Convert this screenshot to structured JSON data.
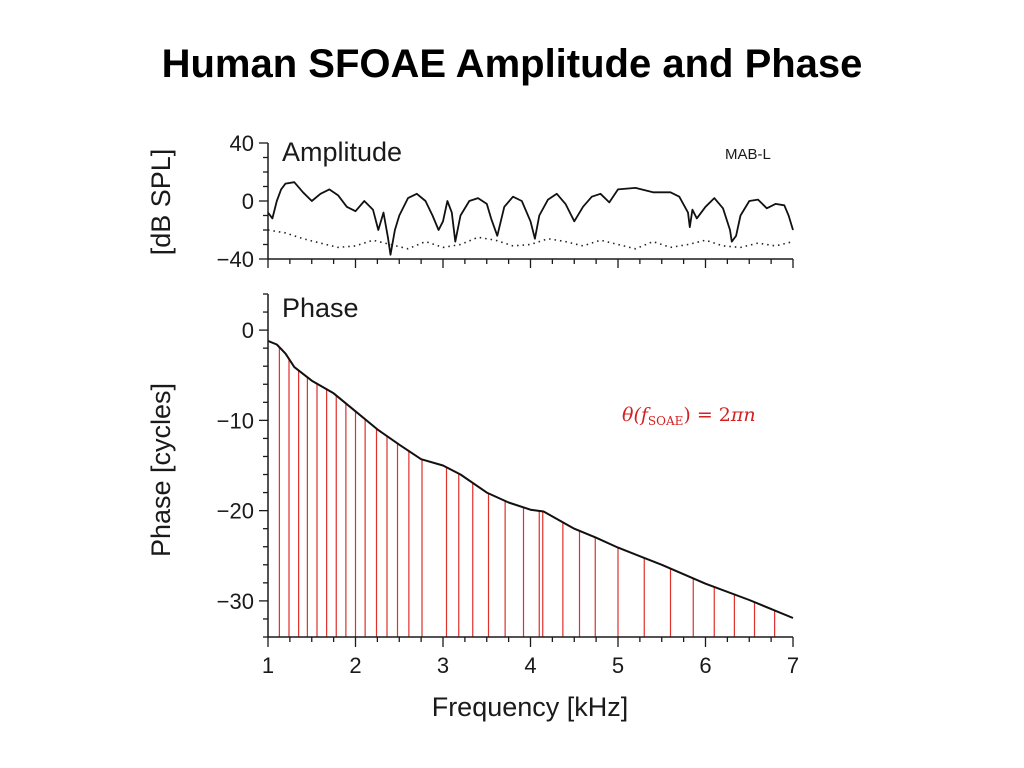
{
  "title": "Human SFOAE Amplitude and Phase",
  "colors": {
    "axis": "#1a1a1a",
    "curve": "#111111",
    "dotted": "#222222",
    "marker": "#e0302a",
    "formula": "#d42020"
  },
  "chart_data": [
    {
      "type": "line",
      "panel_label": "Amplitude",
      "tag": "MAB-L",
      "xlim": [
        1,
        7
      ],
      "ylim": [
        -40,
        40
      ],
      "yticks": [
        "40",
        "0",
        "−40"
      ],
      "ylabel": "[dB SPL]",
      "grid": false,
      "series": [
        {
          "style": "solid",
          "x": [
            1.0,
            1.05,
            1.1,
            1.15,
            1.2,
            1.3,
            1.4,
            1.5,
            1.6,
            1.7,
            1.8,
            1.9,
            2.0,
            2.1,
            2.2,
            2.26,
            2.32,
            2.37,
            2.4,
            2.45,
            2.5,
            2.6,
            2.7,
            2.8,
            2.88,
            2.95,
            3.0,
            3.05,
            3.1,
            3.14,
            3.2,
            3.3,
            3.4,
            3.5,
            3.55,
            3.62,
            3.7,
            3.8,
            3.9,
            4.0,
            4.05,
            4.1,
            4.2,
            4.3,
            4.4,
            4.5,
            4.6,
            4.7,
            4.8,
            4.9,
            5.0,
            5.2,
            5.4,
            5.6,
            5.7,
            5.8,
            5.82,
            5.85,
            5.9,
            6.0,
            6.1,
            6.2,
            6.28,
            6.3,
            6.35,
            6.4,
            6.5,
            6.6,
            6.7,
            6.8,
            6.9,
            6.95,
            7.0
          ],
          "y": [
            -8,
            -12,
            0,
            8,
            12,
            13,
            6,
            0,
            5,
            8,
            4,
            -4,
            -7,
            0,
            -6,
            -20,
            -8,
            -25,
            -37,
            -20,
            -10,
            2,
            5,
            0,
            -10,
            -20,
            -14,
            0,
            -8,
            -28,
            -10,
            0,
            2,
            -2,
            -12,
            -24,
            -4,
            3,
            0,
            -14,
            -26,
            -10,
            1,
            5,
            -2,
            -14,
            -4,
            3,
            5,
            -1,
            8,
            9,
            6,
            6,
            3,
            -8,
            -18,
            -6,
            -12,
            -4,
            2,
            -5,
            -20,
            -28,
            -24,
            -10,
            0,
            1,
            -5,
            -2,
            -3,
            -10,
            -20
          ]
        },
        {
          "style": "dotted",
          "x": [
            1.0,
            1.2,
            1.4,
            1.6,
            1.8,
            2.0,
            2.2,
            2.4,
            2.6,
            2.8,
            3.0,
            3.2,
            3.4,
            3.6,
            3.8,
            4.0,
            4.2,
            4.4,
            4.6,
            4.8,
            5.0,
            5.2,
            5.4,
            5.6,
            5.8,
            6.0,
            6.2,
            6.4,
            6.6,
            6.8,
            7.0
          ],
          "y": [
            -20,
            -22,
            -26,
            -29,
            -32,
            -31,
            -27,
            -30,
            -33,
            -28,
            -32,
            -30,
            -25,
            -27,
            -31,
            -30,
            -26,
            -28,
            -31,
            -27,
            -30,
            -33,
            -28,
            -32,
            -30,
            -27,
            -31,
            -32,
            -29,
            -31,
            -28
          ]
        }
      ]
    },
    {
      "type": "line",
      "panel_label": "Phase",
      "xlim": [
        1,
        7
      ],
      "ylim": [
        -34,
        4
      ],
      "xticks": [
        "1",
        "2",
        "3",
        "4",
        "5",
        "6",
        "7"
      ],
      "yticks": [
        "0",
        "−10",
        "−20",
        "−30"
      ],
      "xlabel": "Frequency [kHz]",
      "ylabel": "Phase [cycles]",
      "grid": false,
      "annotation": "θ(f_SOAE) = 2πn",
      "series": [
        {
          "style": "solid",
          "x": [
            1.0,
            1.1,
            1.2,
            1.3,
            1.5,
            1.75,
            2.0,
            2.25,
            2.5,
            2.75,
            3.0,
            3.2,
            3.5,
            3.75,
            4.0,
            4.15,
            4.5,
            4.75,
            5.0,
            5.5,
            6.0,
            6.5,
            7.0
          ],
          "y": [
            -1.2,
            -1.6,
            -2.6,
            -4.1,
            -5.6,
            -7.0,
            -9.0,
            -11.0,
            -12.7,
            -14.3,
            -15.0,
            -16.0,
            -18.0,
            -19.1,
            -19.9,
            -20.1,
            -22.0,
            -23.0,
            -24.1,
            -26.0,
            -28.1,
            -29.9,
            -31.9
          ]
        }
      ],
      "markers_x": [
        1.13,
        1.24,
        1.35,
        1.45,
        1.56,
        1.67,
        1.78,
        1.89,
        2.0,
        2.11,
        2.24,
        2.36,
        2.48,
        2.61,
        2.76,
        3.04,
        3.18,
        3.34,
        3.52,
        3.71,
        3.92,
        4.1,
        4.14,
        4.37,
        4.56,
        4.74,
        5.0,
        5.3,
        5.6,
        5.86,
        6.1,
        6.33,
        6.56,
        6.79
      ]
    }
  ]
}
